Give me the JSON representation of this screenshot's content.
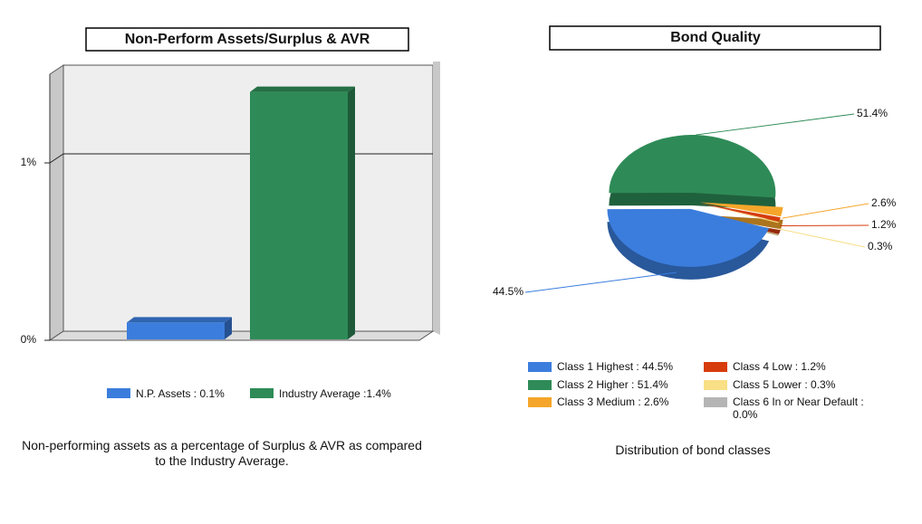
{
  "chart_data": [
    {
      "type": "bar",
      "title": "Non-Perform Assets/Surplus & AVR",
      "categories": [
        null
      ],
      "series": [
        {
          "name": "N.P. Assets : 0.1%",
          "color": "#3b7ddd",
          "values": [
            0.1
          ]
        },
        {
          "name": "Industry Average :1.4%",
          "color": "#2e8b57",
          "values": [
            1.4
          ]
        }
      ],
      "ylim": [
        0,
        1.5
      ],
      "yticks": [
        {
          "value": 0,
          "label": "0%"
        },
        {
          "value": 1,
          "label": "1%"
        }
      ],
      "grid": true,
      "caption": "Non-performing assets as a percentage of Surplus & AVR as compared to the Industry Average."
    },
    {
      "type": "pie",
      "title": "Bond Quality",
      "categories": [
        "Class 1 Highest : 44.5%",
        "Class 2 Higher : 51.4%",
        "Class 3 Medium : 2.6%",
        "Class 4 Low : 1.2%",
        "Class 5 Lower : 0.3%",
        "Class 6 In or Near Default : 0.0%"
      ],
      "values": [
        44.5,
        51.4,
        2.6,
        1.2,
        0.3,
        0.0
      ],
      "value_labels": [
        "44.5%",
        "51.4%",
        "2.6%",
        "1.2%",
        "0.3%",
        null
      ],
      "colors": [
        "#3b7ddd",
        "#2e8b57",
        "#f5a62a",
        "#d63c0c",
        "#f9df86",
        "#b5b5b5"
      ],
      "caption": "Distribution of bond classes"
    }
  ]
}
